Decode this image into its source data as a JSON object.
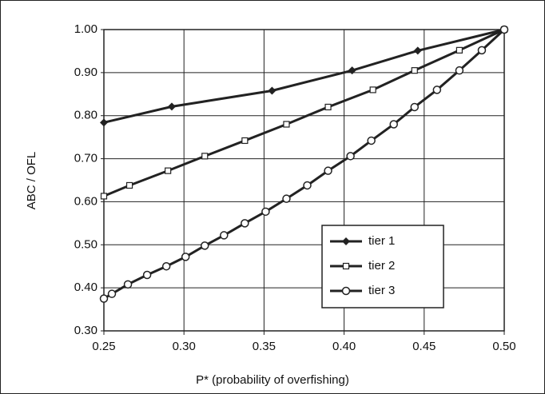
{
  "chart_data": {
    "type": "line",
    "x_label": "P* (probability of overfishing)",
    "y_label": "ABC / OFL",
    "xlim": [
      0.25,
      0.5
    ],
    "ylim": [
      0.3,
      1.0
    ],
    "xticks": [
      {
        "value": 0.25,
        "label": "0.25"
      },
      {
        "value": 0.3,
        "label": "0.30"
      },
      {
        "value": 0.35,
        "label": "0.35"
      },
      {
        "value": 0.4,
        "label": "0.40"
      },
      {
        "value": 0.45,
        "label": "0.45"
      },
      {
        "value": 0.5,
        "label": "0.50"
      }
    ],
    "yticks": [
      {
        "value": 0.3,
        "label": "0.30"
      },
      {
        "value": 0.4,
        "label": "0.40"
      },
      {
        "value": 0.5,
        "label": "0.50"
      },
      {
        "value": 0.6,
        "label": "0.60"
      },
      {
        "value": 0.7,
        "label": "0.70"
      },
      {
        "value": 0.8,
        "label": "0.80"
      },
      {
        "value": 0.9,
        "label": "0.90"
      },
      {
        "value": 1.0,
        "label": "1.00"
      }
    ],
    "grid": true,
    "legend_position": "lower right",
    "series": [
      {
        "name": "tier 1",
        "color": "#222222",
        "marker": "diamond",
        "x": [
          0.25,
          0.2924,
          0.355,
          0.405,
          0.446,
          0.5
        ],
        "values": [
          0.784,
          0.821,
          0.858,
          0.905,
          0.951,
          1.0
        ]
      },
      {
        "name": "tier 2",
        "color": "#222222",
        "marker": "square",
        "x": [
          0.25,
          0.266,
          0.29,
          0.313,
          0.338,
          0.364,
          0.39,
          0.418,
          0.444,
          0.472,
          0.5
        ],
        "values": [
          0.613,
          0.638,
          0.672,
          0.706,
          0.742,
          0.78,
          0.82,
          0.86,
          0.905,
          0.952,
          1.0
        ]
      },
      {
        "name": "tier 3",
        "color": "#222222",
        "marker": "circle",
        "x": [
          0.25,
          0.255,
          0.265,
          0.277,
          0.289,
          0.301,
          0.313,
          0.325,
          0.338,
          0.351,
          0.364,
          0.377,
          0.39,
          0.404,
          0.417,
          0.431,
          0.444,
          0.458,
          0.472,
          0.486,
          0.5
        ],
        "values": [
          0.375,
          0.386,
          0.408,
          0.43,
          0.45,
          0.472,
          0.498,
          0.522,
          0.55,
          0.577,
          0.607,
          0.638,
          0.672,
          0.706,
          0.742,
          0.78,
          0.82,
          0.86,
          0.905,
          0.952,
          1.0
        ]
      }
    ]
  }
}
